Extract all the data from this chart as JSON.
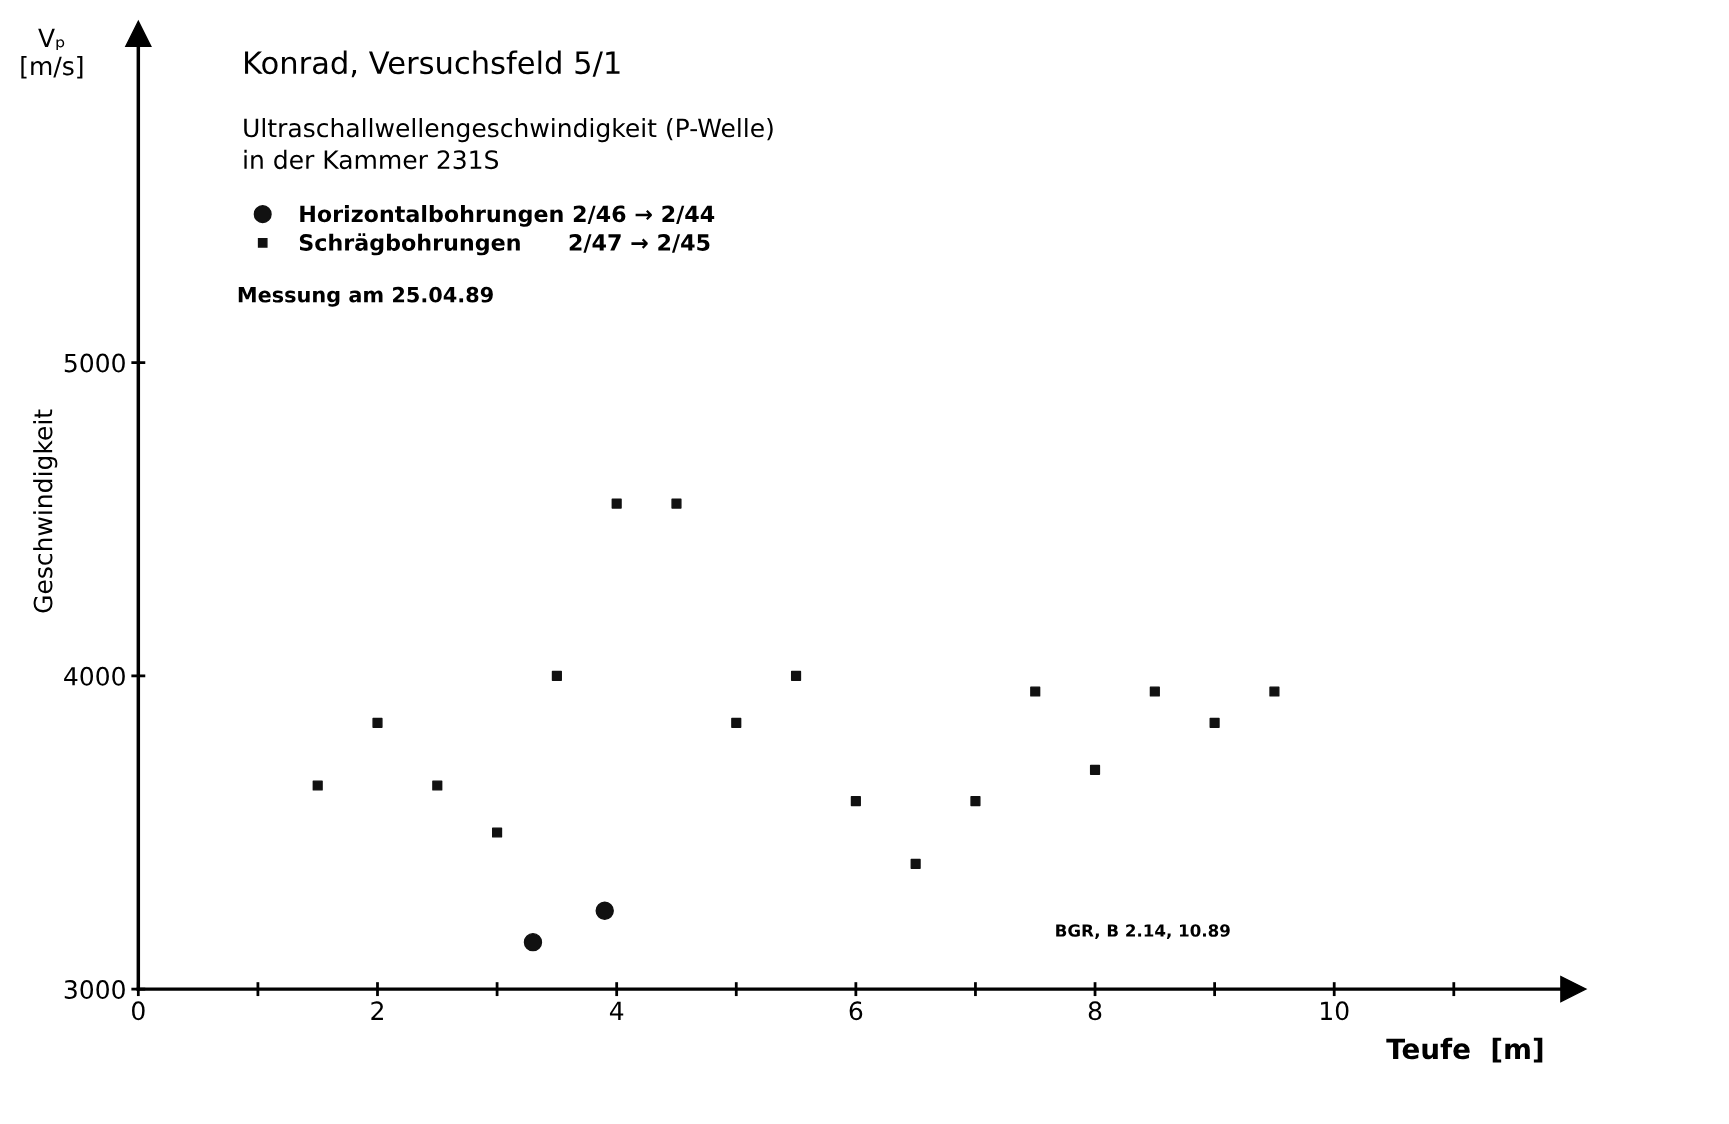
{
  "chart_data": {
    "type": "scatter",
    "title": "Konrad, Versuchsfeld 5/1",
    "subtitle": "Ultraschallwellengeschwindigkeit (P-Welle)\nin der Kammer 231S",
    "xlabel": "Teufe  [m]",
    "ylabel": "Geschwindigkeit",
    "annotations": [
      "Vₚ\n[m/s]",
      "Messung am 25.04.89",
      "BGR, B 2.14, 10.89"
    ],
    "xlim": [
      0,
      12
    ],
    "ylim": [
      3000,
      6050
    ],
    "xticks": [
      0,
      {
        "value": 1,
        "label": null
      },
      2,
      {
        "value": 3,
        "label": null
      },
      4,
      {
        "value": 5,
        "label": null
      },
      6,
      {
        "value": 7,
        "label": null
      },
      8,
      {
        "value": 9,
        "label": null
      },
      10,
      {
        "value": 11,
        "label": null
      }
    ],
    "yticks": [
      3000,
      4000,
      5000
    ],
    "grid": false,
    "legend": "top left",
    "series": [
      {
        "name": "Horizontalbohrungen 2/46 → 2/44",
        "color": "#111111",
        "marker": "circle",
        "x": [
          3.3,
          3.9
        ],
        "values": [
          3150,
          3250
        ]
      },
      {
        "name": "Schrägbohrungen      2/47 → 2/45",
        "color": "#111111",
        "marker": "square",
        "x": [
          1.5,
          2,
          2.5,
          3,
          3.5,
          4,
          4.5,
          5,
          5.5,
          6,
          6.5,
          7,
          7.5,
          8,
          8.5,
          9,
          9.5
        ],
        "values": [
          3650,
          3850,
          3650,
          3500,
          4000,
          4550,
          4550,
          3850,
          4000,
          3600,
          3400,
          3600,
          3950,
          3700,
          3950,
          3850,
          3950
        ]
      }
    ]
  }
}
